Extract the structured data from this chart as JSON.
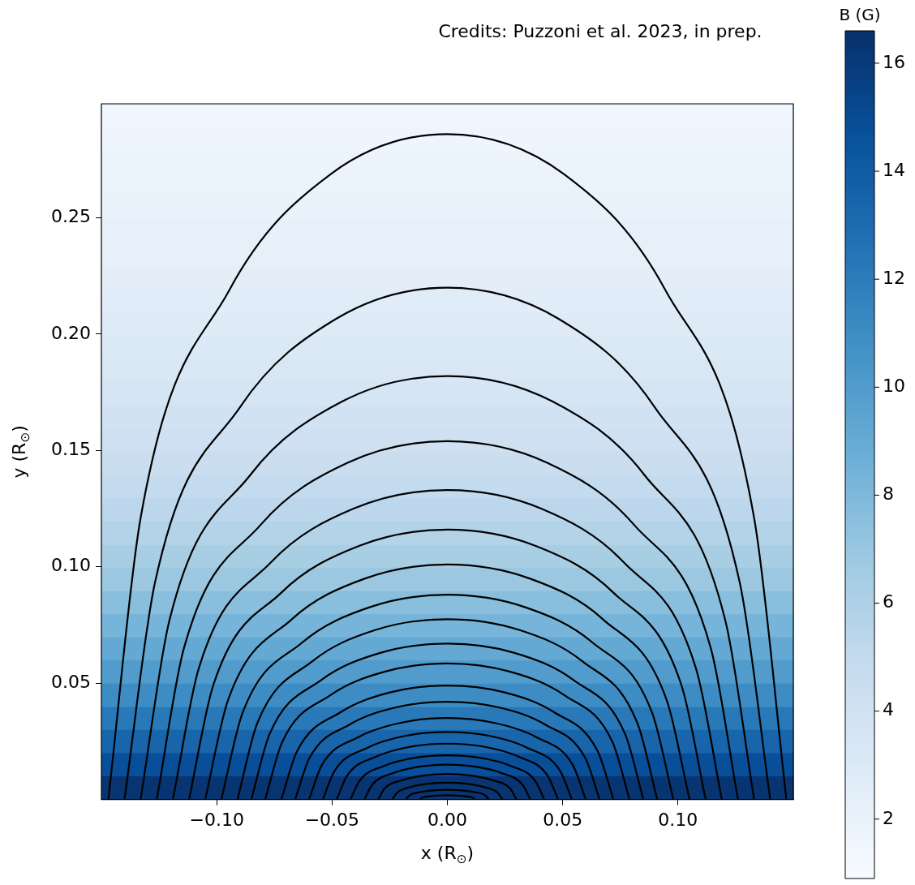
{
  "chart_data": {
    "type": "heatmap",
    "xlabel": "x (R$_{⊙}$)",
    "ylabel": "y (R$_{⊙}$)",
    "clabel": "B (G)",
    "annotations": [
      "Credits: Puzzoni et al. 2023, in prep."
    ],
    "xlim": [
      -0.15,
      0.15
    ],
    "ylim": [
      0,
      0.299
    ],
    "xticks": [
      {
        "value": -0.1,
        "label": "−0.10"
      },
      {
        "value": -0.05,
        "label": "−0.05"
      },
      {
        "value": 0,
        "label": "0.00"
      },
      {
        "value": 0.05,
        "label": "0.05"
      },
      {
        "value": 0.1,
        "label": "0.10"
      }
    ],
    "yticks": [
      {
        "value": 0.05,
        "label": "0.05"
      },
      {
        "value": 0.1,
        "label": "0.10"
      },
      {
        "value": 0.15,
        "label": "0.15"
      },
      {
        "value": 0.2,
        "label": "0.20"
      },
      {
        "value": 0.25,
        "label": "0.25"
      }
    ],
    "clim": [
      0.9,
      16.6
    ],
    "cticks": [
      2,
      4,
      6,
      8,
      10,
      12,
      14,
      16
    ],
    "cells": [
      [
        1.5
      ],
      [
        1.6
      ],
      [
        1.8
      ],
      [
        1.9
      ],
      [
        2.0
      ],
      [
        2.2
      ],
      [
        2.3
      ],
      [
        2.5
      ],
      [
        2.7
      ],
      [
        2.9
      ],
      [
        3.1
      ],
      [
        3.3
      ],
      [
        3.6
      ],
      [
        3.9
      ],
      [
        4.2
      ],
      [
        4.5
      ],
      [
        4.9
      ],
      [
        5.3
      ],
      [
        5.8
      ],
      [
        6.3
      ],
      [
        6.9
      ],
      [
        7.6
      ],
      [
        8.3
      ],
      [
        9.1
      ],
      [
        10.0
      ],
      [
        11.0
      ],
      [
        12.2
      ],
      [
        13.4
      ],
      [
        14.8
      ],
      [
        16.3
      ]
    ],
    "grid": false,
    "series": [
      {
        "type": "line",
        "color": "#000000",
        "x": [
          -0.147,
          -0.133,
          -0.0945,
          -0.0503,
          0,
          0.0503,
          0.0945,
          0.133,
          0.147
        ],
        "values": [
          0,
          0.121,
          0.219,
          0.269,
          0.286,
          0.269,
          0.219,
          0.121,
          0
        ]
      },
      {
        "type": "line",
        "color": "#000000",
        "x": [
          -0.14,
          -0.1268,
          -0.09,
          -0.0479,
          0,
          0.0479,
          0.09,
          0.1268,
          0.14
        ],
        "values": [
          0,
          0.0931,
          0.1685,
          0.2068,
          0.22,
          0.2068,
          0.1685,
          0.0931,
          0
        ]
      },
      {
        "type": "line",
        "color": "#000000",
        "x": [
          -0.133,
          -0.1205,
          -0.0855,
          -0.0455,
          0,
          0.0455,
          0.0855,
          0.1205,
          0.133
        ],
        "values": [
          0,
          0.077,
          0.1394,
          0.1711,
          0.182,
          0.1711,
          0.1394,
          0.077,
          0
        ]
      },
      {
        "type": "line",
        "color": "#000000",
        "x": [
          -0.126,
          -0.1142,
          -0.081,
          -0.0431,
          0,
          0.0431,
          0.081,
          0.1142,
          0.126
        ],
        "values": [
          0,
          0.0651,
          0.118,
          0.1448,
          0.154,
          0.1448,
          0.118,
          0.0651,
          0
        ]
      },
      {
        "type": "line",
        "color": "#000000",
        "x": [
          -0.119,
          -0.1078,
          -0.0765,
          -0.0407,
          0,
          0.0407,
          0.0765,
          0.1078,
          0.119
        ],
        "values": [
          0,
          0.0563,
          0.1019,
          0.125,
          0.133,
          0.125,
          0.1019,
          0.0563,
          0
        ]
      },
      {
        "type": "line",
        "color": "#000000",
        "x": [
          -0.112,
          -0.1015,
          -0.072,
          -0.0383,
          0,
          0.0383,
          0.072,
          0.1015,
          0.112
        ],
        "values": [
          0,
          0.0491,
          0.0889,
          0.109,
          0.116,
          0.109,
          0.0889,
          0.0491,
          0
        ]
      },
      {
        "type": "line",
        "color": "#000000",
        "x": [
          -0.105,
          -0.0951,
          -0.0675,
          -0.0359,
          0,
          0.0359,
          0.0675,
          0.0951,
          0.105
        ],
        "values": [
          0,
          0.0427,
          0.0774,
          0.0949,
          0.101,
          0.0949,
          0.0774,
          0.0427,
          0
        ]
      },
      {
        "type": "line",
        "color": "#000000",
        "x": [
          -0.098,
          -0.0888,
          -0.063,
          -0.0335,
          0,
          0.0335,
          0.063,
          0.0888,
          0.098
        ],
        "values": [
          0,
          0.0372,
          0.0674,
          0.0827,
          0.088,
          0.0827,
          0.0674,
          0.0372,
          0
        ]
      },
      {
        "type": "line",
        "color": "#000000",
        "x": [
          -0.091,
          -0.0824,
          -0.0585,
          -0.0311,
          0,
          0.0311,
          0.0585,
          0.0824,
          0.091
        ],
        "values": [
          0,
          0.0328,
          0.0594,
          0.0729,
          0.0775,
          0.0729,
          0.0594,
          0.0328,
          0
        ]
      },
      {
        "type": "line",
        "color": "#000000",
        "x": [
          -0.085,
          -0.077,
          -0.0547,
          -0.0291,
          0,
          0.0291,
          0.0547,
          0.077,
          0.085
        ],
        "values": [
          0,
          0.0283,
          0.0513,
          0.063,
          0.067,
          0.063,
          0.0513,
          0.0283,
          0
        ]
      },
      {
        "type": "line",
        "color": "#000000",
        "x": [
          -0.079,
          -0.0716,
          -0.0508,
          -0.027,
          0,
          0.027,
          0.0508,
          0.0716,
          0.079
        ],
        "values": [
          0,
          0.0247,
          0.0448,
          0.055,
          0.0585,
          0.055,
          0.0448,
          0.0247,
          0
        ]
      },
      {
        "type": "line",
        "color": "#000000",
        "x": [
          -0.072,
          -0.0652,
          -0.0463,
          -0.0246,
          0,
          0.0246,
          0.0463,
          0.0652,
          0.072
        ],
        "values": [
          0,
          0.0207,
          0.0375,
          0.0461,
          0.049,
          0.0461,
          0.0375,
          0.0207,
          0
        ]
      },
      {
        "type": "line",
        "color": "#000000",
        "x": [
          -0.066,
          -0.0598,
          -0.0424,
          -0.0226,
          0,
          0.0226,
          0.0424,
          0.0598,
          0.066
        ],
        "values": [
          0,
          0.0178,
          0.0322,
          0.0395,
          0.042,
          0.0395,
          0.0322,
          0.0178,
          0
        ]
      },
      {
        "type": "line",
        "color": "#000000",
        "x": [
          -0.06,
          -0.0544,
          -0.0386,
          -0.0205,
          0,
          0.0205,
          0.0386,
          0.0544,
          0.06
        ],
        "values": [
          0,
          0.0148,
          0.0268,
          0.0329,
          0.035,
          0.0329,
          0.0268,
          0.0148,
          0
        ]
      },
      {
        "type": "line",
        "color": "#000000",
        "x": [
          -0.054,
          -0.0489,
          -0.0347,
          -0.0185,
          0,
          0.0185,
          0.0347,
          0.0489,
          0.054
        ],
        "values": [
          0,
          0.0123,
          0.0222,
          0.0273,
          0.029,
          0.0273,
          0.0222,
          0.0123,
          0
        ]
      },
      {
        "type": "line",
        "color": "#000000",
        "x": [
          -0.048,
          -0.0435,
          -0.0309,
          -0.0164,
          0,
          0.0164,
          0.0309,
          0.0435,
          0.048
        ],
        "values": [
          0,
          0.0102,
          0.0184,
          0.0226,
          0.024,
          0.0226,
          0.0184,
          0.0102,
          0
        ]
      },
      {
        "type": "line",
        "color": "#000000",
        "x": [
          -0.042,
          -0.0381,
          -0.027,
          -0.0144,
          0,
          0.0144,
          0.027,
          0.0381,
          0.042
        ],
        "values": [
          0,
          0.008,
          0.0146,
          0.0179,
          0.019,
          0.0179,
          0.0146,
          0.008,
          0
        ]
      },
      {
        "type": "line",
        "color": "#000000",
        "x": [
          -0.036,
          -0.0326,
          -0.0231,
          -0.0123,
          0,
          0.0123,
          0.0231,
          0.0326,
          0.036
        ],
        "values": [
          0,
          0.0063,
          0.0115,
          0.0141,
          0.015,
          0.0141,
          0.0115,
          0.0063,
          0
        ]
      },
      {
        "type": "line",
        "color": "#000000",
        "x": [
          -0.03,
          -0.0272,
          -0.0193,
          -0.0103,
          0,
          0.0103,
          0.0193,
          0.0272,
          0.03
        ],
        "values": [
          0,
          0.0047,
          0.0084,
          0.0103,
          0.011,
          0.0103,
          0.0084,
          0.0047,
          0
        ]
      },
      {
        "type": "line",
        "color": "#000000",
        "x": [
          -0.024,
          -0.0217,
          -0.0154,
          -0.0082,
          0,
          0.0082,
          0.0154,
          0.0217,
          0.024
        ],
        "values": [
          0,
          0.003,
          0.0055,
          0.0068,
          0.0072,
          0.0068,
          0.0055,
          0.003,
          0
        ]
      },
      {
        "type": "line",
        "color": "#000000",
        "x": [
          -0.018,
          -0.0163,
          -0.0116,
          -0.0062,
          0,
          0.0062,
          0.0116,
          0.0163,
          0.018
        ],
        "values": [
          0,
          0.0018,
          0.0032,
          0.0039,
          0.0042,
          0.0039,
          0.0032,
          0.0018,
          0
        ]
      },
      {
        "type": "line",
        "color": "#000000",
        "x": [
          -0.012,
          -0.0109,
          -0.0077,
          -0.0041,
          0,
          0.0041,
          0.0077,
          0.0109,
          0.012
        ],
        "values": [
          0,
          0.0008,
          0.0014,
          0.0017,
          0.0018,
          0.0017,
          0.0014,
          0.0008,
          0
        ]
      }
    ]
  }
}
